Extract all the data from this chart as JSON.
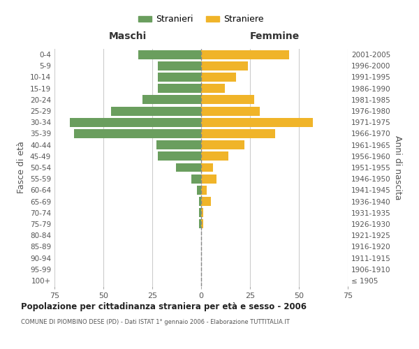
{
  "age_groups": [
    "100+",
    "95-99",
    "90-94",
    "85-89",
    "80-84",
    "75-79",
    "70-74",
    "65-69",
    "60-64",
    "55-59",
    "50-54",
    "45-49",
    "40-44",
    "35-39",
    "30-34",
    "25-29",
    "20-24",
    "15-19",
    "10-14",
    "5-9",
    "0-4"
  ],
  "birth_years": [
    "≤ 1905",
    "1906-1910",
    "1911-1915",
    "1916-1920",
    "1921-1925",
    "1926-1930",
    "1931-1935",
    "1936-1940",
    "1941-1945",
    "1946-1950",
    "1951-1955",
    "1956-1960",
    "1961-1965",
    "1966-1970",
    "1971-1975",
    "1976-1980",
    "1981-1985",
    "1986-1990",
    "1991-1995",
    "1996-2000",
    "2001-2005"
  ],
  "males": [
    0,
    0,
    0,
    0,
    0,
    1,
    1,
    1,
    2,
    5,
    13,
    22,
    23,
    65,
    67,
    46,
    30,
    22,
    22,
    22,
    32
  ],
  "females": [
    0,
    0,
    0,
    0,
    0,
    1,
    1,
    5,
    3,
    8,
    6,
    14,
    22,
    38,
    57,
    30,
    27,
    12,
    18,
    24,
    45
  ],
  "male_color": "#6a9e5e",
  "female_color": "#f0b429",
  "center_line_color": "#888888",
  "grid_color": "#cccccc",
  "background_color": "#ffffff",
  "title": "Popolazione per cittadinanza straniera per età e sesso - 2006",
  "subtitle": "COMUNE DI PIOMBINO DESE (PD) - Dati ISTAT 1° gennaio 2006 - Elaborazione TUTTITALIA.IT",
  "legend_stranieri": "Stranieri",
  "legend_straniere": "Straniere",
  "xlabel_left": "Maschi",
  "xlabel_right": "Femmine",
  "ylabel_left": "Fasce di età",
  "ylabel_right": "Anni di nascita",
  "xlim": 75,
  "bar_height": 0.8
}
